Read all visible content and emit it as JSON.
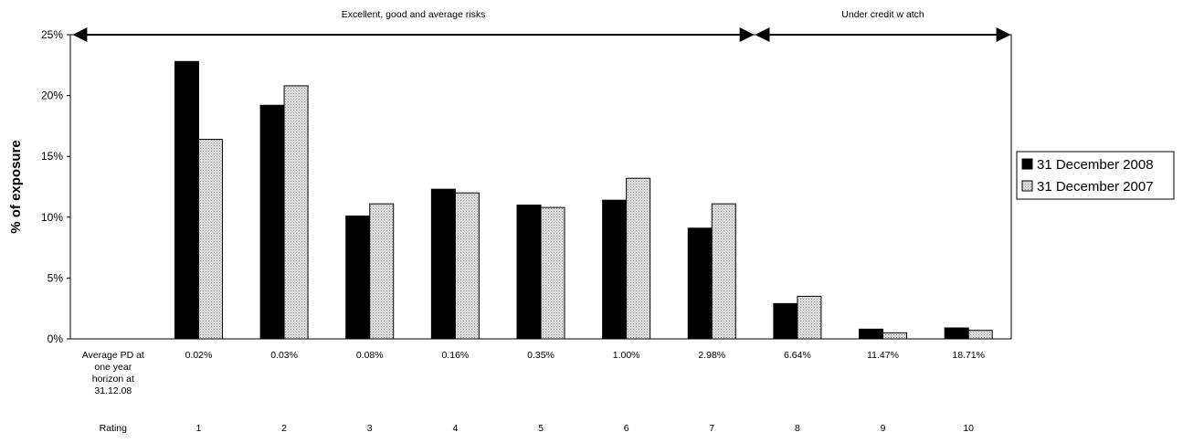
{
  "chart_data": {
    "type": "bar",
    "ylabel": "% of exposure",
    "ylim": [
      0,
      25
    ],
    "yticks": [
      "0%",
      "5%",
      "10%",
      "15%",
      "20%",
      "25%"
    ],
    "ytick_values": [
      0,
      5,
      10,
      15,
      20,
      25
    ],
    "grid": false,
    "legend_position": "right",
    "row_label_pd": "Average PD at one year horizon at 31.12.08",
    "row_label_rating": "Rating",
    "categories": [
      "",
      "1",
      "2",
      "3",
      "4",
      "5",
      "6",
      "7",
      "8",
      "9",
      "10"
    ],
    "pd_values": [
      "",
      "0.02%",
      "0.03%",
      "0.08%",
      "0.16%",
      "0.35%",
      "1.00%",
      "2.98%",
      "6.64%",
      "11.47%",
      "18.71%"
    ],
    "series": [
      {
        "name": "31 December 2008",
        "color": "#000000",
        "pattern": "solid",
        "values": [
          null,
          22.8,
          19.2,
          10.1,
          12.3,
          11.0,
          11.4,
          9.1,
          2.9,
          0.8,
          0.9
        ]
      },
      {
        "name": "31 December 2007",
        "color": "#c8c8c8",
        "pattern": "dotted",
        "values": [
          null,
          16.4,
          20.8,
          11.1,
          12.0,
          10.8,
          13.2,
          11.1,
          3.5,
          0.5,
          0.7
        ]
      }
    ],
    "annotations": [
      {
        "text": "Excellent, good and average risks",
        "from_category": 0,
        "to_category": 7
      },
      {
        "text": "Under credit w atch",
        "from_category": 8,
        "to_category": 10
      }
    ]
  }
}
